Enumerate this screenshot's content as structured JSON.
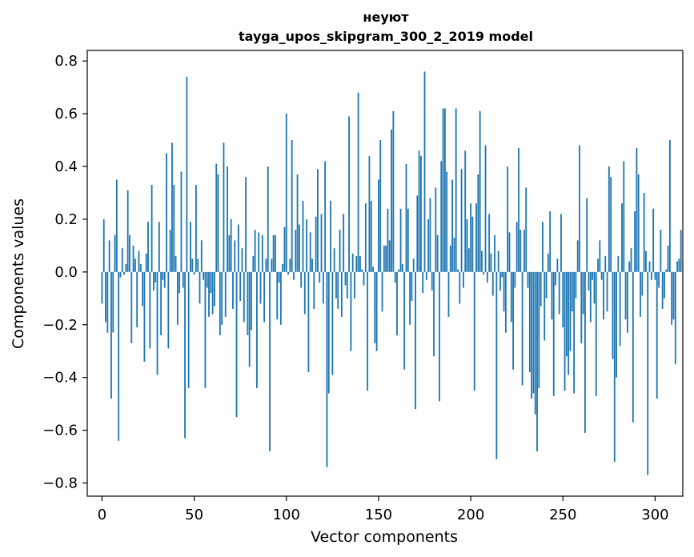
{
  "chart_data": {
    "type": "bar",
    "title": "неуют",
    "subtitle": "tayga_upos_skipgram_300_2_2019 model",
    "xlabel": "Vector components",
    "ylabel": "Components values",
    "xlim": [
      -8,
      315
    ],
    "ylim": [
      -0.85,
      0.84
    ],
    "xticks": [
      0,
      50,
      100,
      150,
      200,
      250,
      300
    ],
    "xtick_labels": [
      "0",
      "50",
      "100",
      "150",
      "200",
      "250",
      "300"
    ],
    "yticks": [
      -0.8,
      -0.6,
      -0.4,
      -0.2,
      0.0,
      0.2,
      0.4,
      0.6,
      0.8
    ],
    "ytick_labels": [
      "−0.8",
      "−0.6",
      "−0.4",
      "−0.2",
      "0.0",
      "0.2",
      "0.4",
      "0.6",
      "0.8"
    ],
    "bar_color": "#1f77b4",
    "values": [
      -0.12,
      0.2,
      -0.19,
      -0.23,
      0.12,
      -0.48,
      -0.23,
      0.14,
      0.35,
      -0.64,
      -0.02,
      0.09,
      -0.01,
      0.03,
      0.31,
      0.14,
      -0.27,
      0.1,
      0.05,
      -0.21,
      0.08,
      0.03,
      -0.13,
      -0.34,
      0.07,
      0.19,
      -0.29,
      0.33,
      -0.07,
      -0.04,
      -0.39,
      0.19,
      -0.24,
      -0.03,
      -0.06,
      0.45,
      -0.29,
      0.16,
      0.49,
      0.33,
      0.06,
      -0.2,
      -0.08,
      0.38,
      -0.06,
      -0.63,
      0.74,
      -0.44,
      0.19,
      0.05,
      -0.01,
      0.33,
      0.05,
      -0.12,
      0.12,
      -0.03,
      -0.44,
      -0.06,
      -0.17,
      -0.08,
      -0.16,
      -0.13,
      0.41,
      0.37,
      -0.24,
      -0.2,
      0.49,
      -0.17,
      0.4,
      0.14,
      0.2,
      -0.14,
      0.12,
      -0.55,
      0.18,
      -0.11,
      0.09,
      -0.19,
      0.36,
      -0.24,
      -0.36,
      -0.22,
      0.06,
      0.16,
      -0.44,
      0.15,
      -0.12,
      0.14,
      -0.19,
      0.05,
      0.4,
      -0.68,
      0.05,
      0.14,
      0.14,
      -0.18,
      -0.04,
      -0.2,
      0.03,
      0.17,
      0.6,
      -0.01,
      0.05,
      0.5,
      -0.03,
      0.16,
      0.37,
      0.18,
      -0.06,
      0.27,
      -0.16,
      0.2,
      -0.38,
      0.15,
      0.05,
      -0.14,
      0.21,
      0.39,
      -0.04,
      0.22,
      -0.12,
      0.42,
      -0.74,
      -0.46,
      0.27,
      -0.39,
      0.09,
      -0.1,
      -0.14,
      0.16,
      -0.17,
      0.22,
      -0.05,
      -0.1,
      0.59,
      -0.3,
      0.07,
      -0.1,
      0.06,
      0.68,
      0.06,
      0.01,
      -0.05,
      0.26,
      -0.45,
      0.44,
      0.27,
      0.02,
      -0.27,
      -0.3,
      0.35,
      0.5,
      -0.15,
      0.1,
      0.1,
      0.24,
      0.12,
      0.54,
      0.61,
      -0.04,
      -0.24,
      0.01,
      0.24,
      0.03,
      -0.37,
      0.41,
      0.24,
      -0.2,
      -0.11,
      0.05,
      -0.52,
      0.29,
      0.46,
      0.44,
      -0.08,
      0.76,
      -0.03,
      0.2,
      0.28,
      -0.07,
      -0.32,
      0.32,
      0.14,
      -0.49,
      0.42,
      0.62,
      0.62,
      0.38,
      -0.17,
      0.1,
      0.35,
      0.13,
      0.62,
      0.01,
      -0.12,
      0.39,
      -0.06,
      0.46,
      0.2,
      0.09,
      0.26,
      0.21,
      -0.45,
      0.26,
      0.37,
      0.61,
      0.08,
      -0.01,
      0.48,
      -0.04,
      0.22,
      0.07,
      -0.09,
      0.14,
      -0.71,
      0.08,
      -0.07,
      -0.02,
      -0.15,
      -0.23,
      0.4,
      0.15,
      -0.19,
      -0.37,
      -0.06,
      0.19,
      0.47,
      0.16,
      -0.43,
      0.16,
      0.32,
      -0.06,
      -0.38,
      -0.48,
      -0.46,
      -0.54,
      -0.68,
      -0.44,
      -0.13,
      0.19,
      -0.26,
      -0.1,
      0.07,
      0.23,
      -0.18,
      -0.47,
      -0.05,
      0.05,
      -0.16,
      0.22,
      -0.21,
      -0.45,
      -0.32,
      -0.39,
      -0.3,
      -0.15,
      -0.46,
      -0.1,
      0.12,
      0.48,
      -0.27,
      -0.16,
      -0.61,
      0.28,
      -0.07,
      -0.19,
      -0.03,
      -0.12,
      -0.47,
      0.05,
      0.12,
      -0.03,
      -0.18,
      0.06,
      -0.15,
      0.4,
      0.36,
      -0.33,
      -0.72,
      -0.4,
      0.06,
      -0.28,
      0.26,
      0.42,
      -0.18,
      -0.23,
      0.04,
      0.09,
      -0.57,
      0.23,
      0.47,
      0.37,
      -0.17,
      -0.09,
      0.3,
      0.08,
      -0.77,
      0.04,
      -0.03,
      0.24,
      -0.03,
      -0.48,
      -0.06,
      0.16,
      -0.14,
      -0.1,
      0.01,
      0.1,
      0.5,
      -0.2,
      -0.18,
      -0.35,
      0.04,
      0.05,
      0.16
    ]
  }
}
